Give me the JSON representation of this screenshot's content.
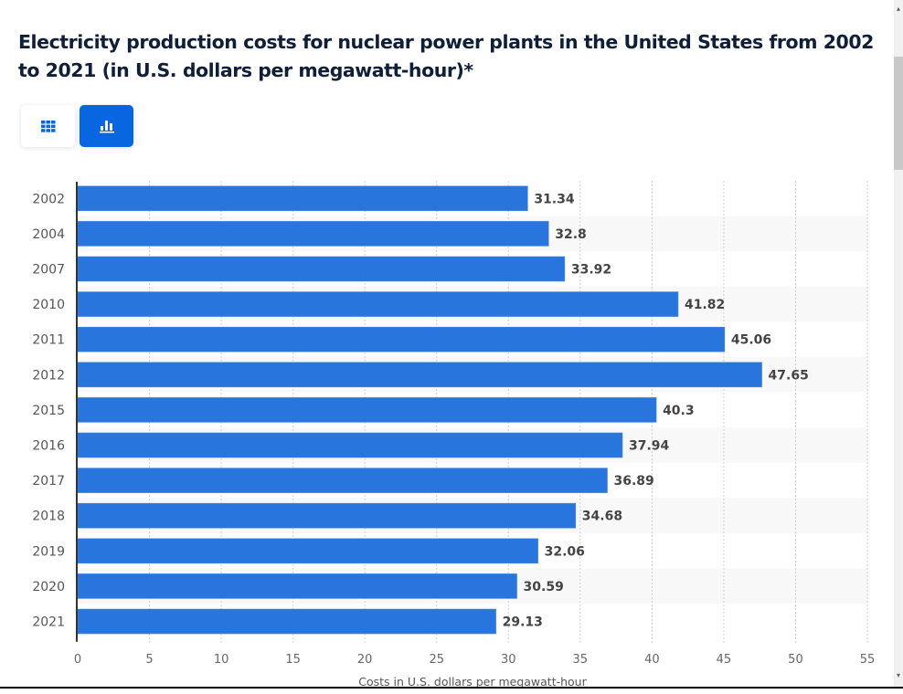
{
  "page": {
    "title": "Electricity production costs for nuclear power plants in the United States from 2002 to 2021 (in U.S. dollars per megawatt-hour)*"
  },
  "view_toggle": {
    "table_icon": "table-grid-icon",
    "chart_icon": "bar-chart-icon",
    "active": "chart",
    "accent_color": "#0866e0"
  },
  "scrollbar": {
    "up_icon": "scroll-up-arrow-icon",
    "down_icon": "scroll-down-arrow-icon"
  },
  "chart_data": {
    "type": "bar",
    "orientation": "horizontal",
    "title": "Electricity production costs for nuclear power plants in the United States from 2002 to 2021 (in U.S. dollars per megawatt-hour)*",
    "categories": [
      "2002",
      "2004",
      "2007",
      "2010",
      "2011",
      "2012",
      "2015",
      "2016",
      "2017",
      "2018",
      "2019",
      "2020",
      "2021"
    ],
    "values": [
      31.34,
      32.8,
      33.92,
      41.82,
      45.06,
      47.65,
      40.3,
      37.94,
      36.89,
      34.68,
      32.06,
      30.59,
      29.13
    ],
    "value_labels": [
      "31.34",
      "32.8",
      "33.92",
      "41.82",
      "45.06",
      "47.65",
      "40.3",
      "37.94",
      "36.89",
      "34.68",
      "32.06",
      "30.59",
      "29.13"
    ],
    "xlabel": "Costs in U.S. dollars per megawatt-hour",
    "ylabel": "",
    "xlim": [
      0,
      55
    ],
    "xticks": [
      0,
      5,
      10,
      15,
      20,
      25,
      30,
      35,
      40,
      45,
      50,
      55
    ],
    "grid": "vertical dashed",
    "alternating_row_bands": true,
    "bar_color": "#2875dd",
    "legend": "none"
  }
}
